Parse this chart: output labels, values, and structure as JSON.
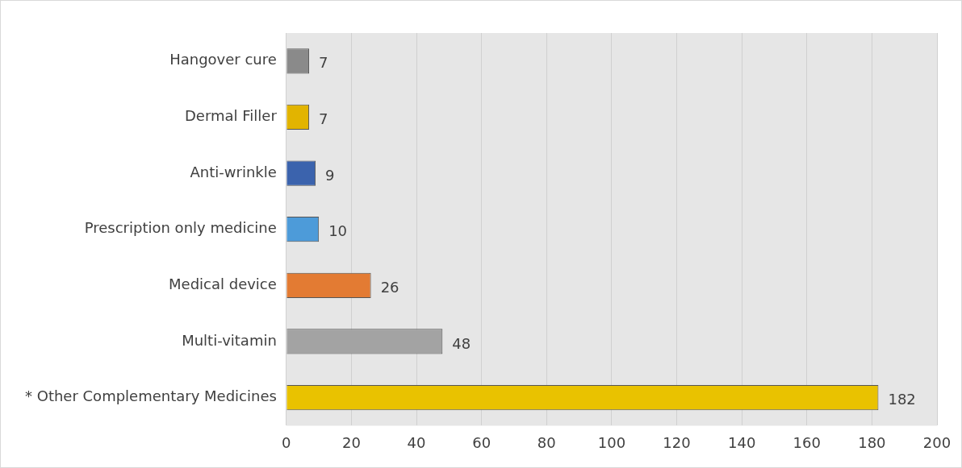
{
  "chart_data": {
    "type": "bar",
    "orientation": "horizontal",
    "categories": [
      "Hangover cure",
      "Dermal Filler",
      "Anti-wrinkle",
      "Prescription only medicine",
      "Medical device",
      "Multi-vitamin",
      "* Other Complementary Medicines"
    ],
    "values": [
      7,
      7,
      9,
      10,
      26,
      48,
      182
    ],
    "colors": [
      "#8a8a8a",
      "#e2b400",
      "#3b63ad",
      "#4d9bd9",
      "#e37b33",
      "#a3a3a3",
      "#e9c200"
    ],
    "xlim": [
      0,
      200
    ],
    "xticks": [
      0,
      20,
      40,
      60,
      80,
      100,
      120,
      140,
      160,
      180,
      200
    ],
    "grid": "x",
    "legend": false,
    "data_labels": true
  }
}
